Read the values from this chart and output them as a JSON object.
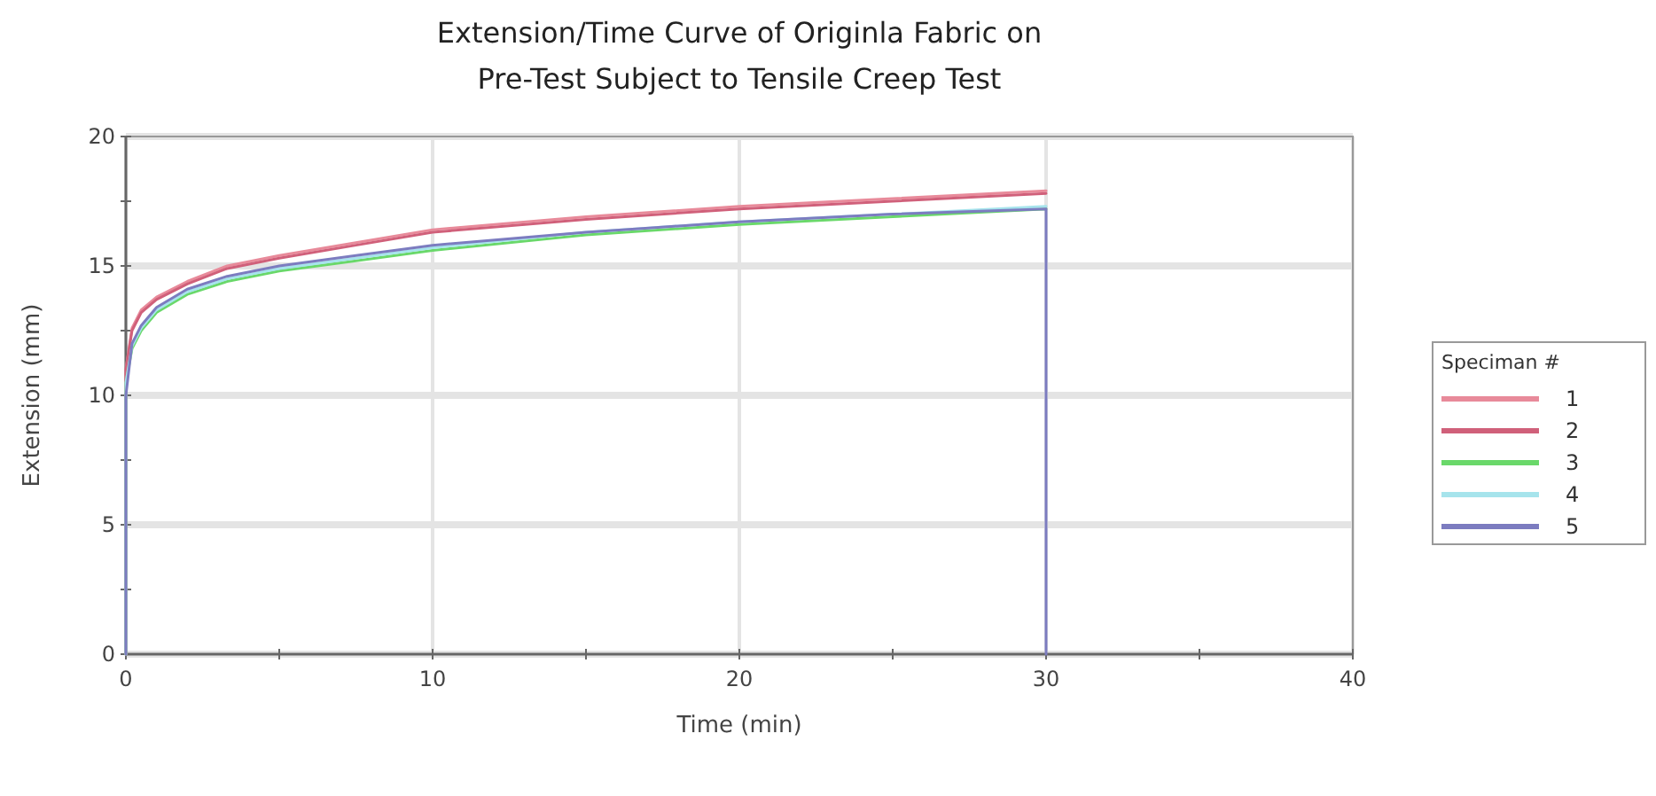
{
  "chart_data": {
    "type": "line",
    "title": "Extension/Time Curve of Originla Fabric on\nPre-Test Subject to Tensile Creep Test",
    "xlabel": "Time (min)",
    "ylabel": "Extension (mm)",
    "legend_title": "Speciman #",
    "legend": "right",
    "grid": true,
    "line_style": "solid",
    "xlim": [
      0,
      40
    ],
    "ylim": [
      0,
      20
    ],
    "xticks": [
      0,
      {
        "value": 5,
        "label": null
      },
      10,
      {
        "value": 15,
        "label": null
      },
      20,
      {
        "value": 25,
        "label": null
      },
      30,
      {
        "value": 35,
        "label": null
      },
      40
    ],
    "yticks": [
      0,
      {
        "value": 2.5,
        "label": null
      },
      5,
      {
        "value": 7.5,
        "label": null
      },
      10,
      {
        "value": 12.5,
        "label": null
      },
      15,
      {
        "value": 17.5,
        "label": null
      },
      20
    ],
    "series": [
      {
        "name": "1",
        "color": "#e88a9a",
        "x": [
          0,
          0,
          0.2,
          0.5,
          1,
          2,
          3.3,
          5,
          7.5,
          10,
          15,
          20,
          25,
          30
        ],
        "values": [
          0,
          11,
          12.6,
          13.3,
          13.8,
          14.4,
          15,
          15.4,
          15.9,
          16.4,
          16.9,
          17.3,
          17.6,
          17.9
        ]
      },
      {
        "name": "2",
        "color": "#d0607a",
        "x": [
          0,
          0,
          0.2,
          0.5,
          1,
          2,
          3.3,
          5,
          7.5,
          10,
          15,
          20,
          25,
          30
        ],
        "values": [
          0,
          11,
          12.5,
          13.2,
          13.7,
          14.3,
          14.9,
          15.3,
          15.8,
          16.3,
          16.8,
          17.2,
          17.5,
          17.8
        ]
      },
      {
        "name": "3",
        "color": "#6ad86a",
        "x": [
          0,
          0,
          0.2,
          0.5,
          1,
          2,
          3.3,
          5,
          7.5,
          10,
          15,
          20,
          25,
          30
        ],
        "values": [
          0,
          10.5,
          11.8,
          12.5,
          13.2,
          13.9,
          14.4,
          14.8,
          15.2,
          15.6,
          16.2,
          16.6,
          16.9,
          17.2
        ]
      },
      {
        "name": "4",
        "color": "#a6e4ec",
        "x": [
          0,
          0,
          0.2,
          0.5,
          1,
          2,
          3.3,
          5,
          7.5,
          10,
          15,
          20,
          25,
          30
        ],
        "values": [
          0,
          10.5,
          11.9,
          12.6,
          13.3,
          14,
          14.5,
          14.9,
          15.3,
          15.7,
          16.3,
          16.7,
          17,
          17.3
        ]
      },
      {
        "name": "5",
        "color": "#7c7cc0",
        "x": [
          0,
          0,
          0.2,
          0.5,
          1,
          2,
          3.3,
          5,
          7.5,
          10,
          15,
          20,
          25,
          30,
          30
        ],
        "values": [
          0,
          10,
          12,
          12.7,
          13.4,
          14.1,
          14.6,
          15,
          15.4,
          15.8,
          16.3,
          16.7,
          17,
          17.2,
          0
        ]
      }
    ]
  }
}
